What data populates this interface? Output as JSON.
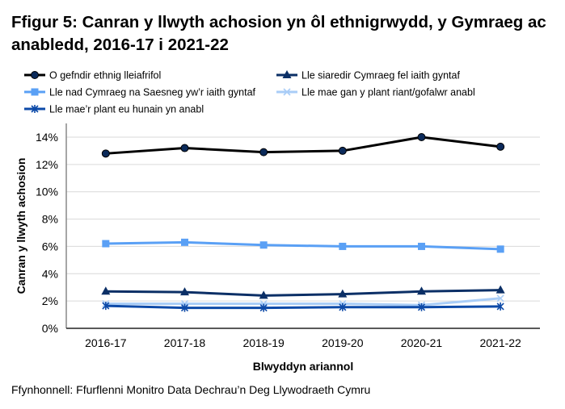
{
  "title": "Ffigur 5: Canran y llwyth achosion yn ôl ethnigrwydd, y Gymraeg ac anabledd, 2016-17 i 2021-22",
  "source": "Ffynhonnell: Ffurflenni Monitro Data Dechrau’n Deg Llywodraeth Cymru",
  "chart_data": {
    "type": "line",
    "xlabel": "Blwyddyn ariannol",
    "ylabel": "Canran y llwyth achosion",
    "categories": [
      "2016-17",
      "2017-18",
      "2018-19",
      "2019-20",
      "2020-21",
      "2021-22"
    ],
    "ylim": [
      0,
      14
    ],
    "yticks": [
      0,
      2,
      4,
      6,
      8,
      10,
      12,
      14
    ],
    "ytick_labels": [
      "0%",
      "2%",
      "4%",
      "6%",
      "8%",
      "10%",
      "12%",
      "14%"
    ],
    "grid": true,
    "legend_placement": "top",
    "series": [
      {
        "name": "O gefndir ethnig lleiafrifol",
        "values": [
          12.8,
          13.2,
          12.9,
          13.0,
          14.0,
          13.3
        ],
        "color": "#000000",
        "marker": "circle",
        "marker_color": "#0b2a5a"
      },
      {
        "name": "Lle siaredir Cymraeg fel iaith gyntaf",
        "values": [
          2.7,
          2.65,
          2.4,
          2.5,
          2.7,
          2.8
        ],
        "color": "#0b2f66",
        "marker": "triangle",
        "marker_color": "#0b2f66"
      },
      {
        "name": "Lle nad Cymraeg na Saesneg yw’r iaith gyntaf",
        "values": [
          6.2,
          6.3,
          6.1,
          6.0,
          6.0,
          5.8
        ],
        "color": "#5aa0f5",
        "marker": "square",
        "marker_color": "#5aa0f5"
      },
      {
        "name": "Lle mae gan y plant riant/gofalwr anabl",
        "values": [
          1.8,
          1.8,
          1.8,
          1.8,
          1.7,
          2.2
        ],
        "color": "#a9cdf7",
        "marker": "x",
        "marker_color": "#a9cdf7"
      },
      {
        "name": "Lle mae’r plant eu hunain yn anabl",
        "values": [
          1.65,
          1.5,
          1.5,
          1.55,
          1.55,
          1.6
        ],
        "color": "#0d4aa8",
        "marker": "asterisk",
        "marker_color": "#0d4aa8"
      }
    ]
  }
}
